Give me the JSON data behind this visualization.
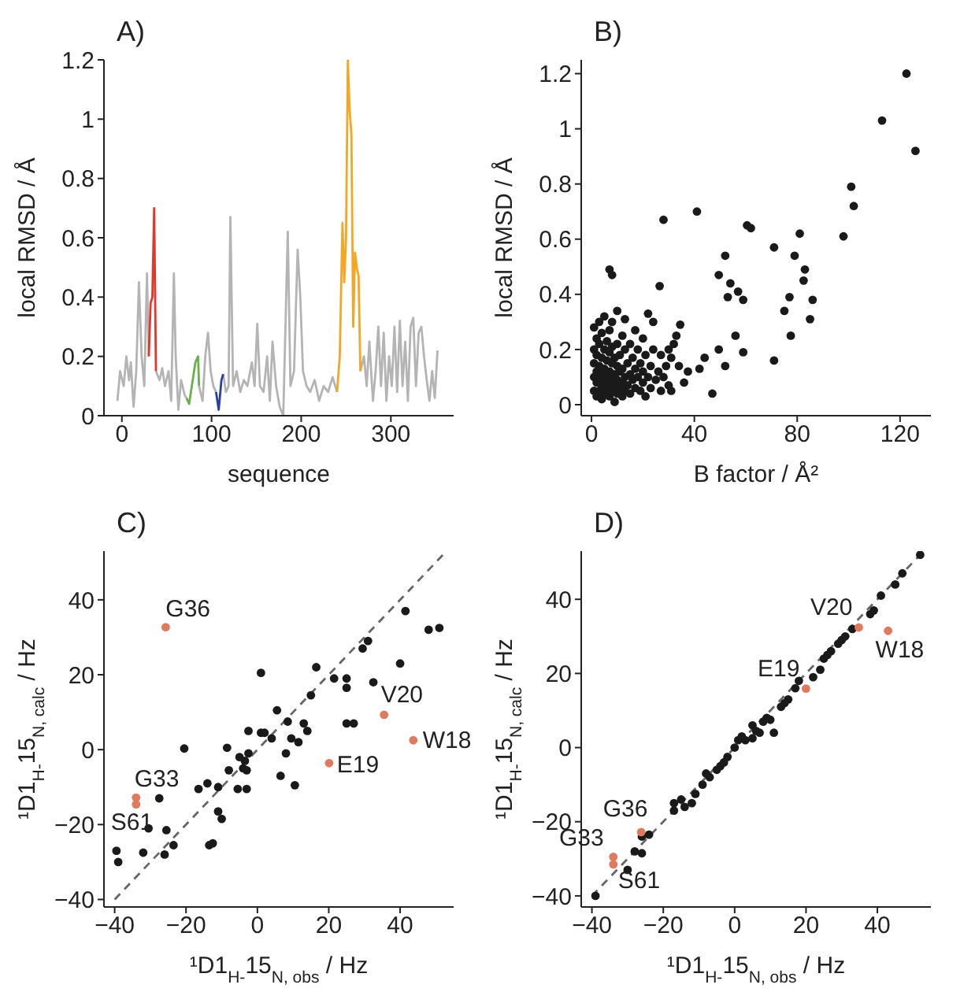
{
  "chart_data": [
    {
      "type": "line",
      "title": "A)",
      "xlabel": "sequence",
      "ylabel": "local RMSD / Å",
      "xlim": [
        -20,
        370
      ],
      "xticks": [
        0,
        100,
        200,
        300
      ],
      "ylim": [
        0,
        1.2
      ],
      "yticks": [
        0,
        0.2,
        0.4,
        0.6,
        0.8,
        1,
        1.2
      ],
      "marker": "none",
      "series": [
        {
          "color": "#b4b4b4",
          "x": [
            -5,
            -2,
            2,
            5,
            8,
            10,
            13,
            16,
            19,
            22,
            25,
            28,
            30,
            34,
            38,
            42,
            45,
            48,
            52,
            55,
            58,
            60,
            63,
            66,
            70,
            72,
            79,
            86,
            90,
            93,
            96,
            99,
            102,
            105,
            109,
            113,
            116,
            119,
            121,
            124,
            128,
            132,
            136,
            140,
            145,
            148,
            151,
            154,
            158,
            162,
            165,
            168,
            172,
            176,
            180,
            185,
            188,
            192,
            196,
            199,
            202,
            206,
            210,
            215,
            220,
            225,
            230,
            235,
            240,
            253,
            266,
            270,
            273,
            276,
            280,
            283,
            286,
            289,
            292,
            295,
            298,
            301,
            304,
            307,
            310,
            313,
            316,
            319,
            322,
            325,
            328,
            331,
            334,
            337,
            340,
            343,
            346,
            349,
            352
          ],
          "values": [
            0.05,
            0.15,
            0.1,
            0.2,
            0.12,
            0.18,
            0.03,
            0.15,
            0.45,
            0.2,
            0.1,
            0.48,
            0.2,
            null,
            0.15,
            0.12,
            0.16,
            0.1,
            0.15,
            0.05,
            0.48,
            0.2,
            0.02,
            0.12,
            0.07,
            0.06,
            null,
            0.1,
            0.05,
            0.2,
            0.28,
            0.15,
            0.1,
            0.08,
            null,
            0.14,
            0.08,
            0.1,
            0.67,
            0.1,
            0.15,
            0.08,
            0.12,
            0.1,
            0.18,
            0.1,
            0.31,
            0.1,
            0.08,
            0.2,
            0.05,
            0.25,
            0.1,
            0.03,
            0,
            0.62,
            0.1,
            0.15,
            0.56,
            0.4,
            0.15,
            0.1,
            0.08,
            0.12,
            0.05,
            0.1,
            0.08,
            0.13,
            0.08,
            null,
            0.15,
            0.2,
            0.1,
            0.25,
            0.05,
            0.15,
            0.3,
            0.1,
            0.28,
            0.05,
            0.2,
            0.1,
            0.3,
            0.08,
            0.32,
            0.1,
            0.25,
            0.05,
            0.3,
            0.33,
            0.1,
            0.28,
            0.3,
            0.2,
            0.12,
            0.05,
            0.15,
            0.06,
            0.22
          ]
        },
        {
          "color": "#e2372a",
          "x": [
            30,
            32,
            34,
            36,
            38
          ],
          "values": [
            0.2,
            0.38,
            0.4,
            0.7,
            0.15
          ]
        },
        {
          "color": "#6ab04c",
          "x": [
            72,
            75,
            78,
            82,
            85,
            86
          ],
          "values": [
            0.06,
            0.04,
            0.1,
            0.18,
            0.2,
            0.1
          ]
        },
        {
          "color": "#2a3f9f",
          "x": [
            105,
            108,
            111,
            113
          ],
          "values": [
            0.08,
            0.02,
            0.12,
            0.14
          ]
        },
        {
          "color": "#f5a623",
          "x": [
            240,
            243,
            246,
            248,
            250,
            252,
            254,
            256,
            258,
            260,
            262,
            264,
            266
          ],
          "values": [
            0.08,
            0.2,
            0.65,
            0.45,
            0.6,
            1.2,
            1.03,
            0.95,
            0.3,
            0.55,
            0.5,
            0.47,
            0.15
          ]
        }
      ]
    },
    {
      "type": "scatter",
      "title": "B)",
      "xlabel": "B factor / Å²",
      "ylabel": "local RMSD / Å",
      "xlim": [
        -4,
        132
      ],
      "xticks": [
        0,
        40,
        80,
        120
      ],
      "ylim": [
        -0.04,
        1.25
      ],
      "yticks": [
        0,
        0.2,
        0.4,
        0.6,
        0.8,
        1,
        1.2
      ],
      "marker": "circle",
      "series": [
        {
          "color": "#1a1a1a",
          "x": [
            1,
            1,
            1,
            1,
            1,
            2,
            2,
            2,
            2,
            2,
            3,
            3,
            3,
            3,
            3,
            4,
            4,
            4,
            4,
            4,
            5,
            5,
            5,
            5,
            5,
            6,
            6,
            6,
            6,
            7,
            7,
            7,
            7,
            7,
            8,
            8,
            8,
            8,
            8,
            9,
            9,
            9,
            9,
            10,
            10,
            10,
            10,
            10,
            11,
            11,
            11,
            12,
            12,
            12,
            12,
            13,
            13,
            13,
            13,
            14,
            14,
            15,
            15,
            15,
            16,
            16,
            17,
            17,
            17,
            18,
            18,
            19,
            19,
            20,
            20,
            20,
            21,
            21,
            22,
            22,
            23,
            23,
            24,
            24,
            25,
            26,
            27,
            27,
            28,
            29,
            30,
            30,
            32,
            33,
            7,
            8,
            28,
            41,
            26.5,
            60.5,
            62,
            71,
            81,
            79,
            83,
            82.5,
            86,
            85,
            75,
            77,
            77.5,
            59,
            71,
            52,
            49.5,
            54,
            57,
            59,
            53,
            56,
            49.5,
            52,
            47,
            98,
            101,
            102,
            113,
            122.5,
            126,
            44,
            42,
            37.5,
            36,
            34,
            31,
            34.5,
            31
          ],
          "values": [
            0.05,
            0.1,
            0.15,
            0.2,
            0.28,
            0.03,
            0.08,
            0.12,
            0.18,
            0.24,
            0.05,
            0.1,
            0.14,
            0.22,
            0.3,
            0.02,
            0.07,
            0.11,
            0.17,
            0.26,
            0.04,
            0.09,
            0.13,
            0.2,
            0.32,
            0.06,
            0.1,
            0.16,
            0.23,
            0.03,
            0.08,
            0.12,
            0.19,
            0.27,
            0.05,
            0.1,
            0.15,
            0.21,
            0.3,
            0.01,
            0.07,
            0.11,
            0.17,
            0.04,
            0.09,
            0.14,
            0.22,
            0.34,
            0.06,
            0.12,
            0.18,
            0.03,
            0.08,
            0.13,
            0.25,
            0.05,
            0.1,
            0.2,
            0.31,
            0.07,
            0.15,
            0.04,
            0.11,
            0.22,
            0.09,
            0.17,
            0.06,
            0.13,
            0.27,
            0.1,
            0.2,
            0.05,
            0.15,
            0.08,
            0.12,
            0.24,
            0.03,
            0.18,
            0.1,
            0.33,
            0.06,
            0.14,
            0.2,
            0.3,
            0.09,
            0.12,
            0.05,
            0.18,
            0.1,
            0.14,
            0.07,
            0.2,
            0.22,
            0.25,
            0.49,
            0.47,
            0.67,
            0.7,
            0.43,
            0.65,
            0.64,
            0.57,
            0.62,
            0.54,
            0.49,
            0.45,
            0.38,
            0.31,
            0.34,
            0.39,
            0.25,
            0.19,
            0.16,
            0.54,
            0.47,
            0.44,
            0.41,
            0.38,
            0.39,
            0.25,
            0.2,
            0.14,
            0.04,
            0.61,
            0.79,
            0.72,
            1.03,
            1.2,
            0.92,
            0.17,
            0.13,
            0.12,
            0.08,
            0.14,
            0.17,
            0.29,
            0.05
          ]
        }
      ]
    },
    {
      "type": "scatter",
      "title": "C)",
      "xlabel": "¹D1$_{H-}$15$_{N, obs}$ / Hz",
      "ylabel": "¹D1$_{H-}$15$_{N, calc}$ / Hz",
      "xlim": [
        -43,
        55
      ],
      "xticks": [
        -40,
        -20,
        0,
        20,
        40
      ],
      "ylim": [
        -42,
        53
      ],
      "yticks": [
        -40,
        -20,
        0,
        20,
        40
      ],
      "marker": "circle",
      "series": [
        {
          "type": "line",
          "color": "#666666",
          "line_style": "dashed",
          "marker": "none",
          "x": [
            -40,
            53
          ],
          "values": [
            -40,
            53
          ]
        },
        {
          "color": "#1a1a1a",
          "x": [
            -39,
            -39.5,
            -32,
            -30.5,
            -27.5,
            -25.5,
            -23.5,
            -26,
            -20.5,
            -16.5,
            -14,
            -13.5,
            -12.5,
            -11,
            -11,
            -10,
            -8.5,
            -8,
            -5.5,
            -5,
            -4,
            -3.5,
            -3,
            -2.5,
            -2.5,
            -3,
            1,
            1,
            2,
            4,
            5.5,
            6.5,
            8.5,
            8,
            9.5,
            10.5,
            11.5,
            13,
            14,
            15,
            16.5,
            21.5,
            25,
            25,
            25,
            27,
            29.5,
            31,
            32.5,
            40,
            41.5,
            48,
            51
          ],
          "values": [
            -30,
            -27,
            -27.5,
            -21,
            -13,
            -21.5,
            -25.5,
            -28,
            0.3,
            -10.5,
            -9,
            -25.5,
            -25,
            -10,
            -16.5,
            -18.5,
            0.5,
            -5.5,
            -10.5,
            -2,
            -5,
            -3,
            -5.5,
            -1,
            5,
            -10.5,
            20.5,
            4.5,
            4.5,
            3,
            10.5,
            -7,
            7.5,
            -1,
            3,
            -9.5,
            2,
            7,
            5,
            14.5,
            22,
            19,
            19,
            16.5,
            7,
            7,
            27,
            29,
            18,
            23,
            37,
            32,
            32.5
          ]
        },
        {
          "color": "#e07a5f",
          "x": [
            -25.7,
            35.5,
            43.7,
            20.1,
            -34,
            -34
          ],
          "values": [
            32.7,
            9.3,
            2.5,
            -3.6,
            -12.8,
            -14.6
          ]
        }
      ],
      "annotations": [
        {
          "text": "G36",
          "x": -25.7,
          "y": 32.7
        },
        {
          "text": "V20",
          "x": 35.5,
          "y": 9.3
        },
        {
          "text": "W18",
          "x": 43.7,
          "y": 2.5
        },
        {
          "text": "E19",
          "x": 20.1,
          "y": -3.6
        },
        {
          "text": "G33",
          "x": -34,
          "y": -12.8
        },
        {
          "text": "S61",
          "x": -34,
          "y": -14.6
        }
      ]
    },
    {
      "type": "scatter",
      "title": "D)",
      "xlabel": "¹D1$_{H-}$15$_{N, obs}$ / Hz",
      "ylabel": "¹D1$_{H-}$15$_{N, calc}$ / Hz",
      "xlim": [
        -43,
        55
      ],
      "xticks": [
        -40,
        -20,
        0,
        20,
        40
      ],
      "ylim": [
        -43,
        53
      ],
      "yticks": [
        -40,
        -20,
        0,
        20,
        40
      ],
      "marker": "circle",
      "series": [
        {
          "type": "line",
          "color": "#666666",
          "line_style": "dashed",
          "marker": "none",
          "x": [
            -40,
            53
          ],
          "values": [
            -40,
            53
          ]
        },
        {
          "color": "#1a1a1a",
          "x": [
            -39,
            -30,
            -28,
            -26,
            -26,
            -24,
            -17,
            -17,
            -15,
            -14,
            -12,
            -11,
            -9,
            -8,
            -7,
            -5,
            -4,
            -3,
            -2,
            0,
            1,
            2,
            3,
            5,
            5,
            6,
            7,
            8,
            9,
            10,
            11,
            13,
            14,
            15,
            17,
            18,
            22,
            24,
            25,
            26,
            27,
            29,
            30,
            31,
            33,
            38,
            39,
            41,
            45,
            47,
            52
          ],
          "values": [
            -40,
            -33,
            -28,
            -24,
            -28.5,
            -23.5,
            -17,
            -15,
            -14,
            -16,
            -15,
            -12.5,
            -10,
            -7,
            -8,
            -6,
            -5,
            -4,
            -2.5,
            0,
            2,
            3,
            2,
            2.5,
            6,
            4.5,
            4,
            7,
            8,
            7.5,
            4,
            11,
            12,
            13,
            16,
            18,
            19,
            21,
            24,
            25,
            26,
            28,
            29,
            30,
            32,
            36,
            37,
            41,
            44,
            47,
            52
          ]
        },
        {
          "color": "#e07a5f",
          "x": [
            34.8,
            43,
            20,
            -26.2,
            -34,
            -34
          ],
          "values": [
            32.4,
            31.5,
            15.9,
            -22.8,
            -29.5,
            -31.5
          ]
        }
      ],
      "annotations": [
        {
          "text": "V20",
          "x": 34.8,
          "y": 32.4
        },
        {
          "text": "W18",
          "x": 43,
          "y": 31.5
        },
        {
          "text": "E19",
          "x": 20,
          "y": 15.9
        },
        {
          "text": "G36",
          "x": -26.2,
          "y": -22.8
        },
        {
          "text": "G33",
          "x": -34,
          "y": -29.5
        },
        {
          "text": "S61",
          "x": -34,
          "y": -31.5
        }
      ]
    }
  ]
}
